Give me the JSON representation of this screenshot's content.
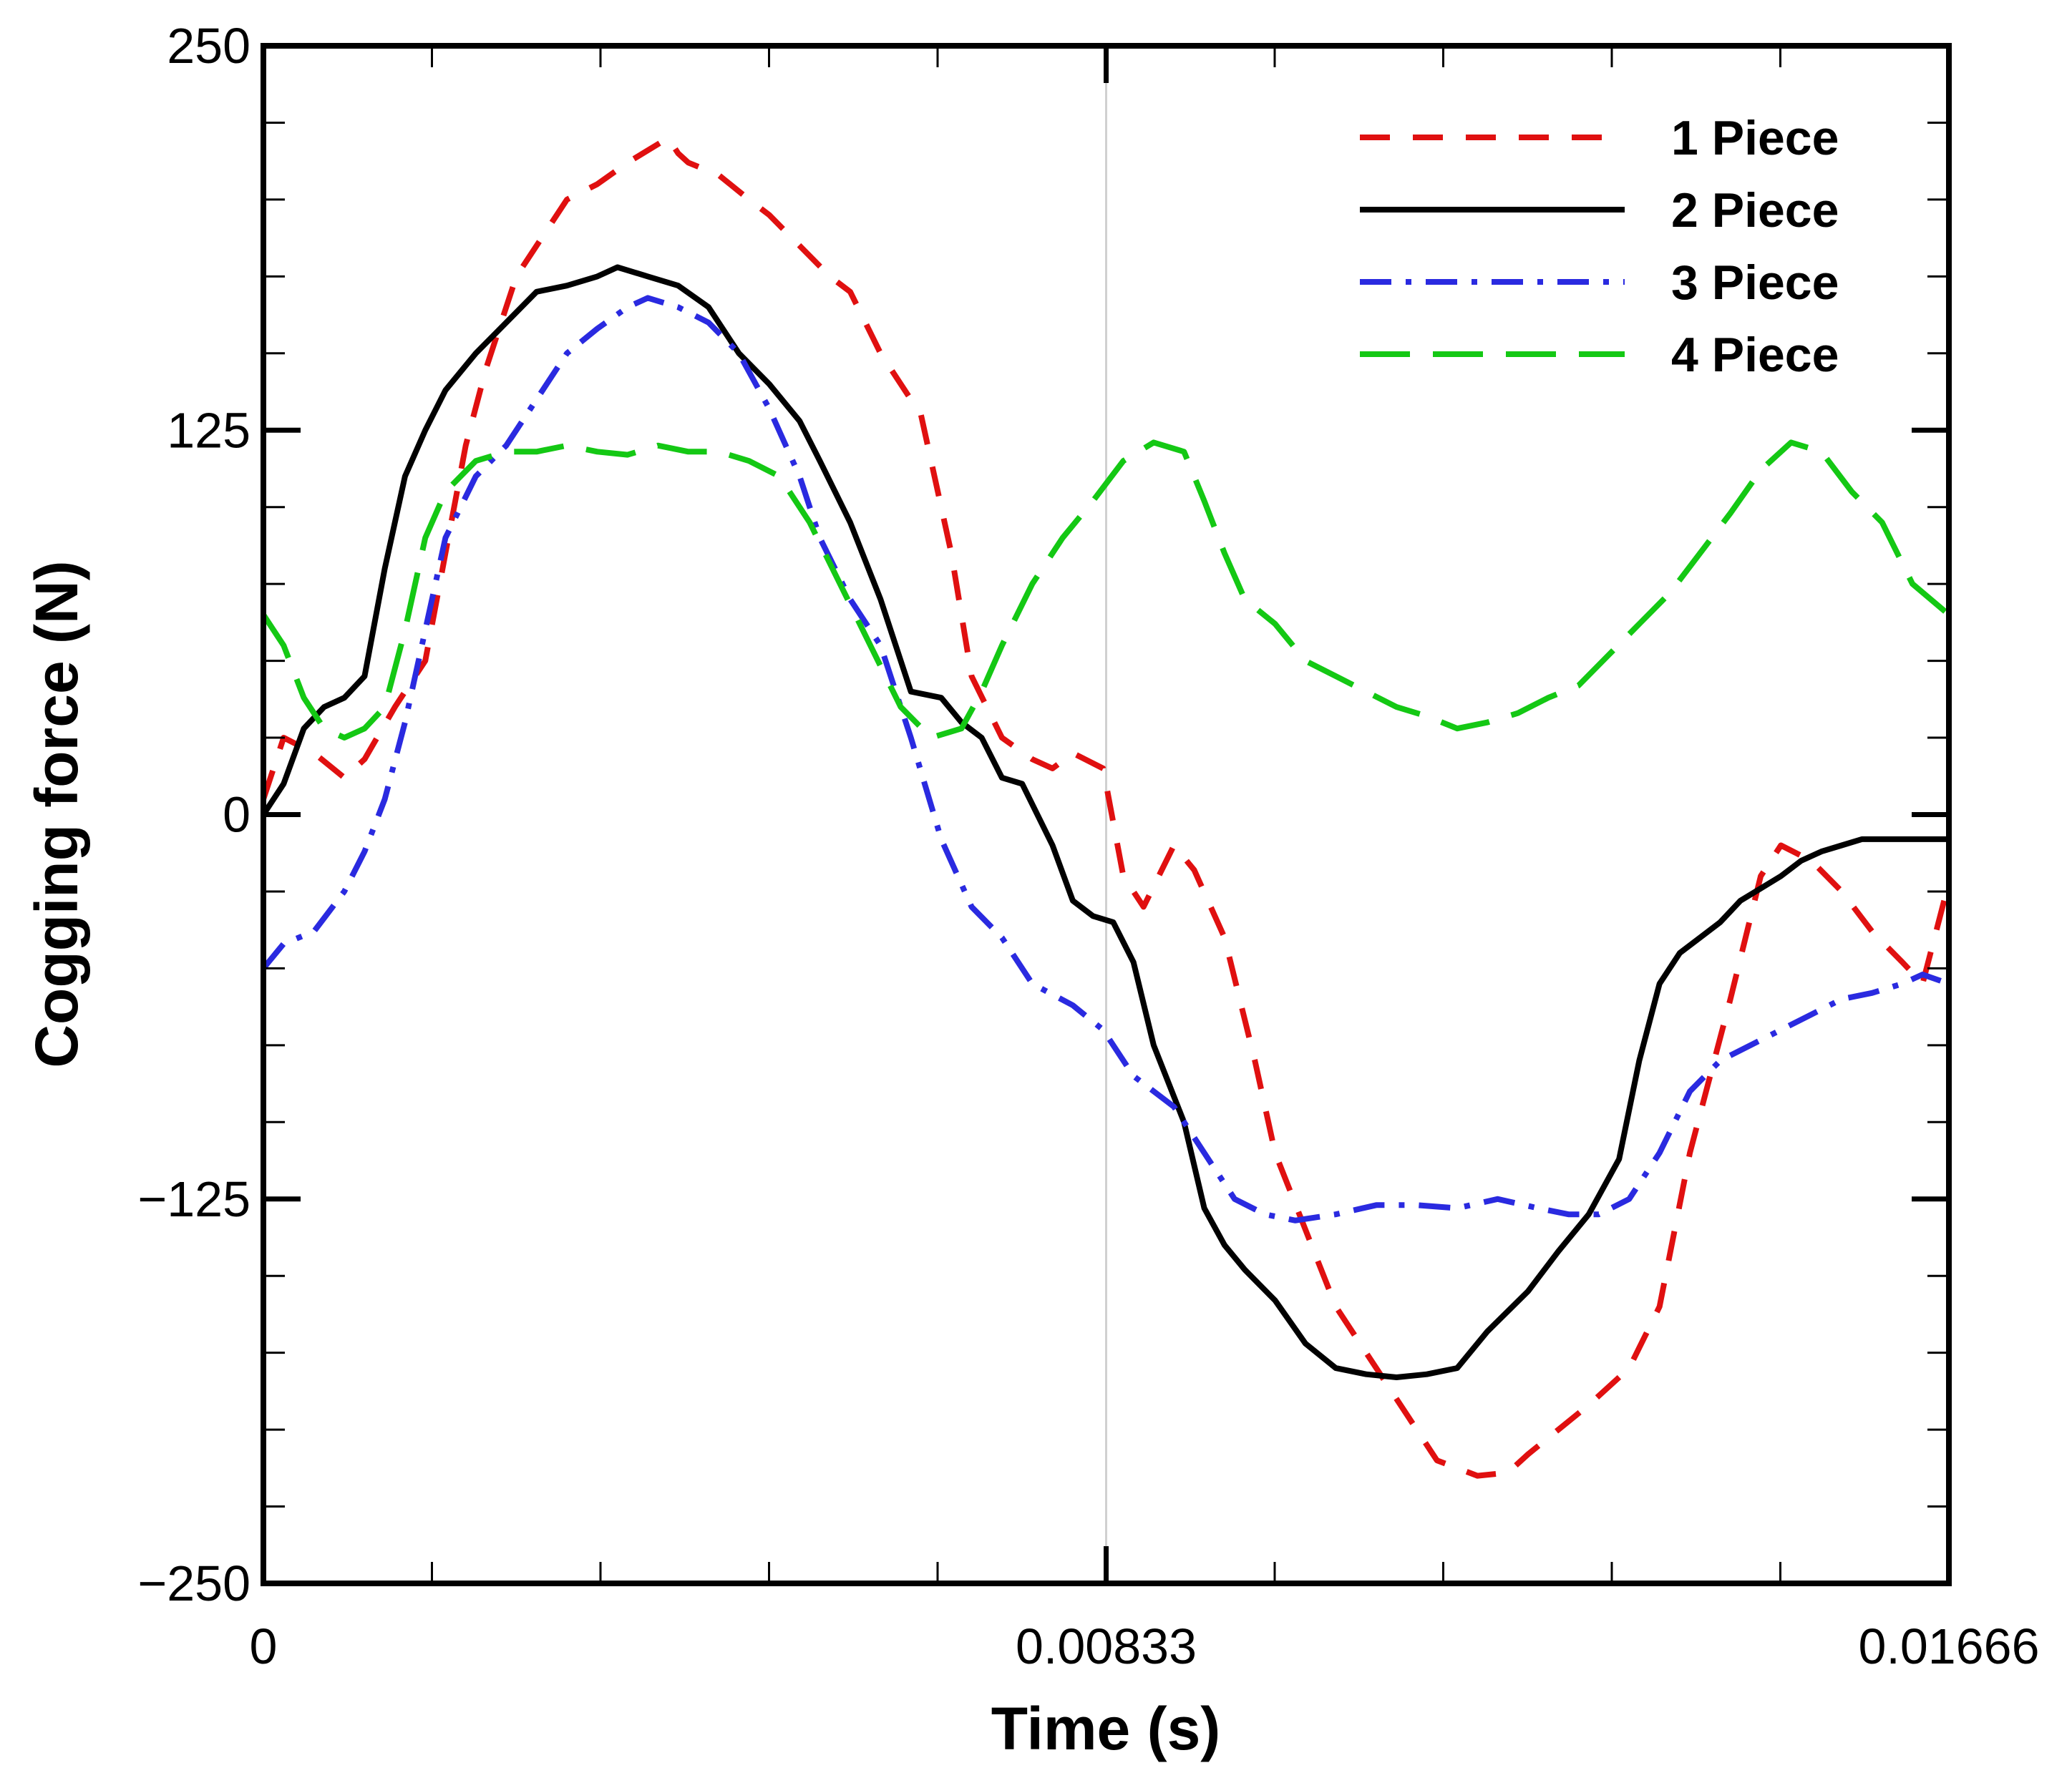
{
  "chart_data": {
    "type": "line",
    "title": "",
    "xlabel": "Time (s)",
    "ylabel": "Cogging force (N)",
    "xlim": [
      0,
      0.01666
    ],
    "ylim": [
      -250,
      250
    ],
    "x_major_ticks": [
      0,
      0.00833,
      0.01666
    ],
    "x_tick_labels": [
      "0",
      "0.00833",
      "0.01666"
    ],
    "x_minor_ticks": [
      0.001666,
      0.003332,
      0.004998,
      0.006664,
      0.009996,
      0.011662,
      0.013328,
      0.014994
    ],
    "y_major_ticks": [
      250,
      125,
      0,
      -125,
      -250
    ],
    "y_tick_labels": [
      "250",
      "125",
      "0",
      "−125",
      "−250"
    ],
    "y_minor_ticks": [
      225,
      200,
      175,
      150,
      100,
      75,
      50,
      25,
      -25,
      -50,
      -75,
      -100,
      -150,
      -175,
      -200,
      -225
    ],
    "vertical_reference_line": 0.00833,
    "legend_position": "top-right",
    "series": [
      {
        "name": "1 Piece",
        "color": "#e01010",
        "style": "dashed",
        "x": [
          0,
          0.0002,
          0.0005,
          0.0008,
          0.001,
          0.0013,
          0.0016,
          0.0018,
          0.002,
          0.0022,
          0.0025,
          0.0028,
          0.003,
          0.0033,
          0.0036,
          0.0038,
          0.004,
          0.0041,
          0.0042,
          0.0045,
          0.0048,
          0.005,
          0.0053,
          0.0056,
          0.0058,
          0.0061,
          0.0065,
          0.0068,
          0.007,
          0.0073,
          0.0076,
          0.0078,
          0.008,
          0.0083,
          0.0085,
          0.0087,
          0.009,
          0.0092,
          0.0095,
          0.0098,
          0.01,
          0.0103,
          0.0106,
          0.011,
          0.0113,
          0.0116,
          0.012,
          0.0123,
          0.0125,
          0.0128,
          0.0131,
          0.0135,
          0.0138,
          0.0141,
          0.0145,
          0.0148,
          0.015,
          0.0153,
          0.0156,
          0.0159,
          0.0162,
          0.0164,
          0.01666
        ],
        "values": [
          5,
          25,
          20,
          12,
          18,
          35,
          50,
          85,
          120,
          145,
          175,
          190,
          200,
          205,
          212,
          216,
          220,
          215,
          212,
          208,
          200,
          195,
          185,
          175,
          170,
          150,
          130,
          85,
          45,
          25,
          18,
          15,
          20,
          15,
          -20,
          -30,
          -10,
          -18,
          -40,
          -80,
          -110,
          -135,
          -160,
          -180,
          -195,
          -210,
          -215,
          -214,
          -208,
          -200,
          -192,
          -180,
          -160,
          -110,
          -60,
          -20,
          -10,
          -15,
          -25,
          -38,
          -48,
          -55,
          -22
        ]
      },
      {
        "name": "2 Piece",
        "color": "#000000",
        "style": "solid",
        "x": [
          0,
          0.0002,
          0.0004,
          0.0006,
          0.0008,
          0.001,
          0.0012,
          0.0014,
          0.0016,
          0.0018,
          0.0021,
          0.0024,
          0.0027,
          0.003,
          0.0033,
          0.0035,
          0.0038,
          0.0041,
          0.0044,
          0.0047,
          0.005,
          0.0053,
          0.0055,
          0.0058,
          0.0061,
          0.0064,
          0.0067,
          0.0069,
          0.0071,
          0.0073,
          0.0075,
          0.0078,
          0.008,
          0.0082,
          0.0084,
          0.0086,
          0.0088,
          0.0091,
          0.0093,
          0.0095,
          0.0097,
          0.01,
          0.0103,
          0.0106,
          0.0109,
          0.0112,
          0.0115,
          0.0118,
          0.0121,
          0.0125,
          0.0128,
          0.0131,
          0.0134,
          0.0136,
          0.0138,
          0.014,
          0.0142,
          0.0144,
          0.0146,
          0.0148,
          0.015,
          0.0152,
          0.0154,
          0.0156,
          0.0158,
          0.01666
        ],
        "values": [
          0,
          10,
          28,
          35,
          38,
          45,
          80,
          110,
          125,
          138,
          150,
          160,
          170,
          172,
          175,
          178,
          175,
          172,
          165,
          150,
          140,
          128,
          115,
          95,
          70,
          40,
          38,
          30,
          25,
          12,
          10,
          -10,
          -28,
          -33,
          -35,
          -48,
          -75,
          -100,
          -128,
          -140,
          -148,
          -158,
          -172,
          -180,
          -182,
          -183,
          -182,
          -180,
          -168,
          -155,
          -142,
          -130,
          -112,
          -80,
          -55,
          -45,
          -40,
          -35,
          -28,
          -24,
          -20,
          -15,
          -12,
          -10,
          -8,
          -8
        ]
      },
      {
        "name": "3 Piece",
        "color": "#2a2ae0",
        "style": "dashdot",
        "x": [
          0,
          0.0002,
          0.0005,
          0.0008,
          0.001,
          0.0012,
          0.0014,
          0.0016,
          0.0018,
          0.0021,
          0.0024,
          0.0027,
          0.003,
          0.0033,
          0.0036,
          0.0038,
          0.0041,
          0.0044,
          0.0047,
          0.005,
          0.0053,
          0.0055,
          0.0058,
          0.0061,
          0.0064,
          0.0067,
          0.007,
          0.0073,
          0.0076,
          0.008,
          0.0083,
          0.0086,
          0.009,
          0.0093,
          0.0096,
          0.0099,
          0.0102,
          0.0106,
          0.011,
          0.0114,
          0.0118,
          0.0122,
          0.0126,
          0.0129,
          0.0132,
          0.0135,
          0.0138,
          0.0141,
          0.0144,
          0.0147,
          0.015,
          0.0153,
          0.0156,
          0.0159,
          0.0162,
          0.0164,
          0.01666
        ],
        "values": [
          -50,
          -42,
          -38,
          -25,
          -12,
          5,
          30,
          60,
          90,
          110,
          120,
          135,
          150,
          158,
          165,
          168,
          165,
          160,
          150,
          132,
          110,
          90,
          70,
          55,
          25,
          -8,
          -30,
          -40,
          -55,
          -62,
          -70,
          -85,
          -95,
          -110,
          -125,
          -130,
          -132,
          -130,
          -127,
          -127,
          -128,
          -125,
          -128,
          -130,
          -130,
          -125,
          -110,
          -90,
          -80,
          -75,
          -70,
          -65,
          -60,
          -58,
          -55,
          -52,
          -55
        ]
      },
      {
        "name": "4 Piece",
        "color": "#14c814",
        "style": "longdash",
        "x": [
          0,
          0.0002,
          0.0004,
          0.0006,
          0.0008,
          0.001,
          0.0012,
          0.0014,
          0.0016,
          0.0018,
          0.0021,
          0.0024,
          0.0027,
          0.003,
          0.0033,
          0.0036,
          0.0039,
          0.0042,
          0.0045,
          0.0048,
          0.0051,
          0.0054,
          0.0057,
          0.006,
          0.0063,
          0.0066,
          0.0069,
          0.0071,
          0.0073,
          0.0076,
          0.0079,
          0.0082,
          0.0085,
          0.0088,
          0.0091,
          0.0093,
          0.0095,
          0.0097,
          0.01,
          0.0103,
          0.0106,
          0.0109,
          0.0112,
          0.0115,
          0.0118,
          0.0121,
          0.0124,
          0.0127,
          0.013,
          0.0133,
          0.0136,
          0.0139,
          0.0142,
          0.0145,
          0.0148,
          0.0151,
          0.0154,
          0.0157,
          0.016,
          0.0163,
          0.01666
        ],
        "values": [
          65,
          55,
          38,
          28,
          25,
          28,
          35,
          60,
          90,
          105,
          115,
          118,
          118,
          120,
          118,
          117,
          120,
          118,
          118,
          115,
          110,
          95,
          75,
          55,
          35,
          25,
          28,
          40,
          55,
          75,
          90,
          102,
          115,
          121,
          118,
          102,
          85,
          70,
          62,
          50,
          45,
          40,
          35,
          32,
          28,
          30,
          33,
          38,
          42,
          52,
          62,
          72,
          85,
          98,
          112,
          121,
          118,
          105,
          95,
          75,
          65
        ]
      }
    ]
  }
}
